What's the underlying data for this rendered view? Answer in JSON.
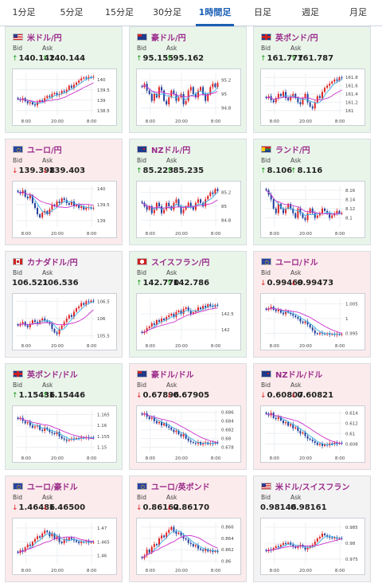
{
  "tabs": [
    {
      "label": "1分足",
      "active": false
    },
    {
      "label": "5分足",
      "active": false
    },
    {
      "label": "15分足",
      "active": false
    },
    {
      "label": "30分足",
      "active": false
    },
    {
      "label": "1時間足",
      "active": true
    },
    {
      "label": "日足",
      "active": false
    },
    {
      "label": "週足",
      "active": false
    },
    {
      "label": "月足",
      "active": false
    }
  ],
  "labels": {
    "bid": "Bid",
    "ask": "Ask"
  },
  "colors": {
    "accent": "#1a5fb4",
    "up": "#1a9a1a",
    "down": "#dd2222",
    "up_bg": "#eaf5ea",
    "down_bg": "#fcebec",
    "flat_bg": "#f3f3f3",
    "ma1": "#3ab0e8",
    "ma2": "#cc33cc"
  },
  "cards": [
    {
      "pair": "米ドル/円",
      "flag": "us-flag",
      "trend": "up",
      "bid": "140.142",
      "ask": "140.144",
      "bid_dir": "up",
      "ask_dir": "up",
      "chart_data": {
        "type": "candlestick",
        "x_ticks": [
          "8:00",
          "20:00",
          "8:00"
        ],
        "y_ticks": [
          "140",
          "139.5",
          "139",
          "138.5"
        ],
        "ylim": [
          138.3,
          140.3
        ],
        "closes": [
          139.05,
          139.0,
          139.1,
          138.95,
          138.85,
          138.9,
          138.8,
          138.75,
          138.9,
          139.0,
          138.95,
          139.1,
          139.2,
          139.15,
          139.3,
          139.35,
          139.25,
          139.3,
          139.45,
          139.4,
          139.5,
          139.7,
          139.6,
          139.75,
          139.85,
          139.95,
          140.05,
          140.1,
          140.05,
          140.12,
          140.1,
          140.14
        ]
      }
    },
    {
      "pair": "豪ドル/円",
      "flag": "au-flag",
      "trend": "up",
      "bid": "95.155",
      "ask": "95.162",
      "bid_dir": "up",
      "ask_dir": "up",
      "chart_data": {
        "type": "candlestick",
        "x_ticks": [
          "8:00",
          "20:00",
          "8:00"
        ],
        "y_ticks": [
          "95.2",
          "95",
          "94.8"
        ],
        "ylim": [
          94.7,
          95.3
        ],
        "closes": [
          95.1,
          95.15,
          95.05,
          95.0,
          94.9,
          95.0,
          94.95,
          95.1,
          95.05,
          94.9,
          94.85,
          94.95,
          95.05,
          95.0,
          94.9,
          94.95,
          95.0,
          94.85,
          94.9,
          95.05,
          95.1,
          95.0,
          94.95,
          95.05,
          95.1,
          95.0,
          94.9,
          95.0,
          95.1,
          95.15,
          95.1,
          95.16
        ]
      }
    },
    {
      "pair": "英ポンド/円",
      "flag": "gb-flag",
      "trend": "up",
      "bid": "161.777",
      "ask": "161.787",
      "bid_dir": "up",
      "ask_dir": "up",
      "chart_data": {
        "type": "candlestick",
        "x_ticks": [
          "8:00",
          "20:00",
          "8:00"
        ],
        "y_ticks": [
          "161.8",
          "161.6",
          "161.4",
          "161.2",
          "161"
        ],
        "ylim": [
          160.9,
          161.9
        ],
        "closes": [
          161.3,
          161.35,
          161.25,
          161.2,
          161.3,
          161.4,
          161.35,
          161.45,
          161.3,
          161.25,
          161.35,
          161.4,
          161.3,
          161.2,
          161.15,
          161.3,
          161.4,
          161.2,
          161.1,
          161.05,
          161.2,
          161.35,
          161.3,
          161.45,
          161.55,
          161.6,
          161.65,
          161.7,
          161.75,
          161.72,
          161.8,
          161.78
        ]
      }
    },
    {
      "pair": "ユーロ/円",
      "flag": "eu-flag",
      "trend": "down",
      "bid": "139.398",
      "ask": "139.403",
      "bid_dir": "down",
      "ask_dir": "down",
      "chart_data": {
        "type": "candlestick",
        "x_ticks": [
          "8:00",
          "20:00",
          "8:00"
        ],
        "y_ticks": [
          "140",
          "139.5",
          "139"
        ],
        "ylim": [
          138.8,
          140.1
        ],
        "closes": [
          139.9,
          139.85,
          139.95,
          139.75,
          139.7,
          139.8,
          139.55,
          139.4,
          139.2,
          139.1,
          139.25,
          139.3,
          139.2,
          139.35,
          139.5,
          139.45,
          139.6,
          139.55,
          139.7,
          139.65,
          139.55,
          139.5,
          139.6,
          139.45,
          139.5,
          139.4,
          139.45,
          139.35,
          139.4,
          139.42,
          139.38,
          139.4
        ]
      }
    },
    {
      "pair": "NZドル/円",
      "flag": "nz-flag",
      "trend": "up",
      "bid": "85.223",
      "ask": "85.235",
      "bid_dir": "up",
      "ask_dir": "up",
      "chart_data": {
        "type": "candlestick",
        "x_ticks": [
          "8:00",
          "20:00",
          "8:00"
        ],
        "y_ticks": [
          "85.2",
          "85",
          "84.8"
        ],
        "ylim": [
          84.7,
          85.3
        ],
        "closes": [
          85.05,
          85.0,
          84.95,
          85.0,
          84.9,
          84.95,
          85.05,
          85.0,
          84.9,
          84.95,
          85.05,
          85.0,
          84.95,
          85.05,
          85.1,
          85.0,
          84.9,
          84.95,
          85.0,
          85.05,
          85.0,
          84.95,
          85.05,
          85.1,
          85.05,
          85.0,
          85.1,
          85.15,
          85.2,
          85.18,
          85.25,
          85.22
        ]
      }
    },
    {
      "pair": "ランド/円",
      "flag": "za-flag",
      "trend": "up",
      "bid": "8.106",
      "ask": "8.116",
      "bid_dir": "up",
      "ask_dir": "up",
      "chart_data": {
        "type": "candlestick",
        "x_ticks": [
          "8:00",
          "20:00",
          "8:00"
        ],
        "y_ticks": [
          "8.16",
          "8.14",
          "8.12",
          "8.1"
        ],
        "ylim": [
          8.08,
          8.17
        ],
        "closes": [
          8.16,
          8.15,
          8.14,
          8.12,
          8.11,
          8.13,
          8.12,
          8.11,
          8.12,
          8.13,
          8.12,
          8.11,
          8.1,
          8.12,
          8.11,
          8.1,
          8.095,
          8.11,
          8.12,
          8.11,
          8.1,
          8.105,
          8.11,
          8.12,
          8.115,
          8.11,
          8.1,
          8.105,
          8.11,
          8.115,
          8.11,
          8.11
        ]
      }
    },
    {
      "pair": "カナダドル/円",
      "flag": "ca-flag",
      "trend": "flat",
      "bid": "106.521",
      "ask": "106.536",
      "bid_dir": "none",
      "ask_dir": "none",
      "chart_data": {
        "type": "candlestick",
        "x_ticks": [
          "8:00",
          "20:00",
          "8:00"
        ],
        "y_ticks": [
          "106.5",
          "106",
          "105.5"
        ],
        "ylim": [
          105.4,
          106.6
        ],
        "closes": [
          105.8,
          105.85,
          105.9,
          105.8,
          105.75,
          105.85,
          105.95,
          105.9,
          105.85,
          105.95,
          106.0,
          105.95,
          105.9,
          105.85,
          105.7,
          105.6,
          105.55,
          105.7,
          105.8,
          105.9,
          106.0,
          106.1,
          106.05,
          106.2,
          106.3,
          106.35,
          106.45,
          106.4,
          106.5,
          106.48,
          106.52,
          106.5
        ]
      }
    },
    {
      "pair": "スイスフラン/円",
      "flag": "ch-flag",
      "trend": "up",
      "bid": "142.770",
      "ask": "142.786",
      "bid_dir": "up",
      "ask_dir": "up",
      "chart_data": {
        "type": "candlestick",
        "x_ticks": [
          "8:00",
          "20:00",
          "8:00"
        ],
        "y_ticks": [
          "142.5",
          "142"
        ],
        "ylim": [
          141.7,
          143.0
        ],
        "closes": [
          141.9,
          141.95,
          142.05,
          142.1,
          142.2,
          142.15,
          142.3,
          142.25,
          142.35,
          142.3,
          142.4,
          142.45,
          142.5,
          142.4,
          142.55,
          142.6,
          142.5,
          142.65,
          142.7,
          142.6,
          142.5,
          142.55,
          142.6,
          142.7,
          142.65,
          142.75,
          142.7,
          142.8,
          142.75,
          142.72,
          142.78,
          142.77
        ]
      }
    },
    {
      "pair": "ユーロ/ドル",
      "flag": "eu-flag",
      "trend": "down",
      "bid": "0.99469",
      "ask": "0.99473",
      "bid_dir": "down",
      "ask_dir": "down",
      "chart_data": {
        "type": "candlestick",
        "x_ticks": [
          "8:00",
          "20:00",
          "8:00"
        ],
        "y_ticks": [
          "1.005",
          "1",
          "0.995"
        ],
        "ylim": [
          0.993,
          1.007
        ],
        "closes": [
          1.003,
          1.0035,
          1.004,
          1.003,
          1.0025,
          1.003,
          1.002,
          1.0015,
          1.0025,
          1.002,
          1.0015,
          1.001,
          1.0005,
          1.0,
          0.999,
          0.9985,
          0.999,
          0.998,
          0.997,
          0.996,
          0.995,
          0.9948,
          0.9952,
          0.995,
          0.9947,
          0.9949,
          0.9946,
          0.9948,
          0.9945,
          0.9947,
          0.9946,
          0.9947
        ]
      }
    },
    {
      "pair": "英ポンド/ドル",
      "flag": "gb-flag",
      "trend": "up",
      "bid": "1.15436",
      "ask": "1.15446",
      "bid_dir": "up",
      "ask_dir": "up",
      "chart_data": {
        "type": "candlestick",
        "x_ticks": [
          "8:00",
          "20:00",
          "8:00"
        ],
        "y_ticks": [
          "1.165",
          "1.16",
          "1.155",
          "1.15"
        ],
        "ylim": [
          1.148,
          1.167
        ],
        "closes": [
          1.163,
          1.1635,
          1.162,
          1.161,
          1.1615,
          1.16,
          1.159,
          1.1595,
          1.16,
          1.158,
          1.1575,
          1.159,
          1.158,
          1.157,
          1.1565,
          1.156,
          1.157,
          1.155,
          1.154,
          1.1535,
          1.153,
          1.1535,
          1.154,
          1.1538,
          1.1542,
          1.154,
          1.1545,
          1.1542,
          1.1546,
          1.1543,
          1.1545,
          1.1544
        ]
      }
    },
    {
      "pair": "豪ドル/ドル",
      "flag": "au-flag",
      "trend": "down",
      "bid": "0.67896",
      "ask": "0.67905",
      "bid_dir": "down",
      "ask_dir": "down",
      "chart_data": {
        "type": "candlestick",
        "x_ticks": [
          "8:00",
          "20:00",
          "8:00"
        ],
        "y_ticks": [
          "0.686",
          "0.684",
          "0.682",
          "0.68",
          "0.678"
        ],
        "ylim": [
          0.677,
          0.6865
        ],
        "closes": [
          0.6855,
          0.6858,
          0.685,
          0.6845,
          0.6848,
          0.684,
          0.6835,
          0.6838,
          0.683,
          0.6835,
          0.6828,
          0.6825,
          0.682,
          0.6815,
          0.6818,
          0.681,
          0.6805,
          0.681,
          0.68,
          0.6795,
          0.6792,
          0.679,
          0.6788,
          0.6792,
          0.6786,
          0.6789,
          0.6791,
          0.6787,
          0.679,
          0.6788,
          0.6791,
          0.679
        ]
      }
    },
    {
      "pair": "NZドル/ドル",
      "flag": "nz-flag",
      "trend": "down",
      "bid": "0.60807",
      "ask": "0.60821",
      "bid_dir": "down",
      "ask_dir": "down",
      "chart_data": {
        "type": "candlestick",
        "x_ticks": [
          "8:00",
          "20:00",
          "8:00"
        ],
        "y_ticks": [
          "0.614",
          "0.612",
          "0.61",
          "0.608"
        ],
        "ylim": [
          0.6065,
          0.6145
        ],
        "closes": [
          0.6138,
          0.6135,
          0.614,
          0.613,
          0.6128,
          0.6132,
          0.6125,
          0.612,
          0.6122,
          0.6115,
          0.6118,
          0.611,
          0.6112,
          0.6105,
          0.61,
          0.6102,
          0.6095,
          0.609,
          0.6088,
          0.6085,
          0.6082,
          0.6078,
          0.608,
          0.6076,
          0.6079,
          0.6077,
          0.6081,
          0.6079,
          0.6082,
          0.608,
          0.6082,
          0.6081
        ]
      }
    },
    {
      "pair": "ユーロ/豪ドル",
      "flag": "eu-flag",
      "trend": "down",
      "bid": "1.46486",
      "ask": "1.46500",
      "bid_dir": "down",
      "ask_dir": "down",
      "chart_data": {
        "type": "candlestick",
        "x_ticks": [
          "8:00",
          "20:00",
          "8:00"
        ],
        "y_ticks": [
          "1.47",
          "1.465",
          "1.46"
        ],
        "ylim": [
          1.457,
          1.472
        ],
        "closes": [
          1.461,
          1.462,
          1.4615,
          1.463,
          1.464,
          1.4635,
          1.465,
          1.466,
          1.467,
          1.4665,
          1.468,
          1.469,
          1.4685,
          1.467,
          1.468,
          1.466,
          1.467,
          1.465,
          1.4645,
          1.466,
          1.4655,
          1.4665,
          1.466,
          1.4655,
          1.465,
          1.4645,
          1.465,
          1.4648,
          1.4652,
          1.4647,
          1.4649,
          1.4649
        ]
      }
    },
    {
      "pair": "ユーロ/英ポンド",
      "flag": "eu-flag",
      "trend": "down",
      "bid": "0.86162",
      "ask": "0.86170",
      "bid_dir": "down",
      "ask_dir": "down",
      "chart_data": {
        "type": "candlestick",
        "x_ticks": [
          "8:00",
          "20:00",
          "8:00"
        ],
        "y_ticks": [
          "0.866",
          "0.864",
          "0.862",
          "0.86"
        ],
        "ylim": [
          0.8595,
          0.8668
        ],
        "closes": [
          0.8605,
          0.861,
          0.862,
          0.8615,
          0.8625,
          0.863,
          0.8628,
          0.864,
          0.8645,
          0.8642,
          0.865,
          0.8655,
          0.866,
          0.8652,
          0.8648,
          0.865,
          0.8645,
          0.864,
          0.8638,
          0.8632,
          0.863,
          0.8626,
          0.8628,
          0.8622,
          0.862,
          0.8618,
          0.8621,
          0.8617,
          0.8619,
          0.8616,
          0.8618,
          0.8616
        ]
      }
    },
    {
      "pair": "米ドル/スイスフラン",
      "flag": "us-flag",
      "trend": "flat",
      "bid": "0.98146",
      "ask": "0.98161",
      "bid_dir": "none",
      "ask_dir": "none",
      "chart_data": {
        "type": "candlestick",
        "x_ticks": [
          "8:00",
          "20:00",
          "8:00"
        ],
        "y_ticks": [
          "0.985",
          "0.98",
          "0.975"
        ],
        "ylim": [
          0.9735,
          0.9865
        ],
        "closes": [
          0.9775,
          0.978,
          0.9778,
          0.9785,
          0.979,
          0.9788,
          0.9795,
          0.98,
          0.9798,
          0.9802,
          0.9795,
          0.979,
          0.9785,
          0.979,
          0.9795,
          0.9788,
          0.978,
          0.9785,
          0.979,
          0.9795,
          0.9805,
          0.9815,
          0.982,
          0.983,
          0.9825,
          0.982,
          0.9818,
          0.9815,
          0.9817,
          0.9814,
          0.9816,
          0.9815
        ]
      }
    }
  ]
}
